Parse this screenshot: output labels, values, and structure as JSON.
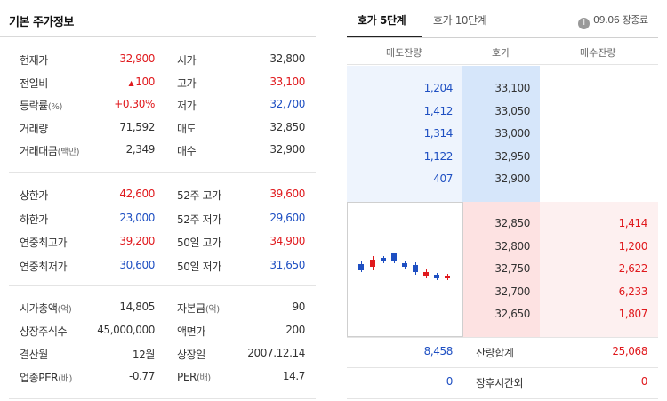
{
  "basic_info": {
    "title": "기본 주가정보",
    "rows1": [
      {
        "l1": "현재가",
        "l1sub": "",
        "v1": "32,900",
        "c1": "up",
        "l2": "시가",
        "l2sub": "",
        "v2": "32,800",
        "c2": ""
      },
      {
        "l1": "전일비",
        "l1sub": "",
        "v1": "100",
        "c1": "up",
        "tri": "▲",
        "l2": "고가",
        "l2sub": "",
        "v2": "33,100",
        "c2": "up"
      },
      {
        "l1": "등락률",
        "l1sub": "(%)",
        "v1": "+0.30%",
        "c1": "up",
        "l2": "저가",
        "l2sub": "",
        "v2": "32,700",
        "c2": "down"
      },
      {
        "l1": "거래량",
        "l1sub": "",
        "v1": "71,592",
        "c1": "",
        "l2": "매도",
        "l2sub": "",
        "v2": "32,850",
        "c2": ""
      },
      {
        "l1": "거래대금",
        "l1sub": "(백만)",
        "v1": "2,349",
        "c1": "",
        "l2": "매수",
        "l2sub": "",
        "v2": "32,900",
        "c2": ""
      }
    ],
    "rows2": [
      {
        "l1": "상한가",
        "l1sub": "",
        "v1": "42,600",
        "c1": "up",
        "l2": "52주 고가",
        "l2sub": "",
        "v2": "39,600",
        "c2": "up"
      },
      {
        "l1": "하한가",
        "l1sub": "",
        "v1": "23,000",
        "c1": "down",
        "l2": "52주 저가",
        "l2sub": "",
        "v2": "29,600",
        "c2": "down"
      },
      {
        "l1": "연중최고가",
        "l1sub": "",
        "v1": "39,200",
        "c1": "up",
        "l2": "50일 고가",
        "l2sub": "",
        "v2": "34,900",
        "c2": "up"
      },
      {
        "l1": "연중최저가",
        "l1sub": "",
        "v1": "30,600",
        "c1": "down",
        "l2": "50일 저가",
        "l2sub": "",
        "v2": "31,650",
        "c2": "down"
      }
    ],
    "rows3": [
      {
        "l1": "시가총액",
        "l1sub": "(억)",
        "v1": "14,805",
        "c1": "",
        "l2": "자본금",
        "l2sub": "(억)",
        "v2": "90",
        "c2": ""
      },
      {
        "l1": "상장주식수",
        "l1sub": "",
        "v1": "45,000,000",
        "c1": "",
        "l2": "액면가",
        "l2sub": "",
        "v2": "200",
        "c2": ""
      },
      {
        "l1": "결산월",
        "l1sub": "",
        "v1": "12월",
        "c1": "",
        "l2": "상장일",
        "l2sub": "",
        "v2": "2007.12.14",
        "c2": ""
      },
      {
        "l1": "업종PER",
        "l1sub": "(배)",
        "v1": "-0.77",
        "c1": "",
        "l2": "PER",
        "l2sub": "(배)",
        "v2": "14.7",
        "c2": ""
      }
    ]
  },
  "orderbook": {
    "tabs": [
      "호가 5단계",
      "호가 10단계"
    ],
    "active_tab": 0,
    "info_icon": "info-icon",
    "status": "09.06 장종료",
    "headers": {
      "ask_vol": "매도잔량",
      "price": "호가",
      "bid_vol": "매수잔량"
    },
    "asks": [
      {
        "vol": "1,204",
        "price": "33,100"
      },
      {
        "vol": "1,412",
        "price": "33,050"
      },
      {
        "vol": "1,314",
        "price": "33,000"
      },
      {
        "vol": "1,122",
        "price": "32,950"
      },
      {
        "vol": "407",
        "price": "32,900"
      }
    ],
    "bids": [
      {
        "price": "32,850",
        "vol": "1,414"
      },
      {
        "price": "32,800",
        "vol": "1,200"
      },
      {
        "price": "32,750",
        "vol": "2,622"
      },
      {
        "price": "32,700",
        "vol": "6,233"
      },
      {
        "price": "32,650",
        "vol": "1,807"
      }
    ],
    "total": {
      "label": "잔량합계",
      "ask": "8,458",
      "bid": "25,068"
    },
    "afterhours": {
      "label": "장후시간외",
      "ask": "0",
      "bid": "0"
    },
    "colors": {
      "up": "#e0191d",
      "down": "#1e4fc2",
      "ask_bg": "#eef4fd",
      "bid_bg": "#fdf0f0"
    }
  }
}
